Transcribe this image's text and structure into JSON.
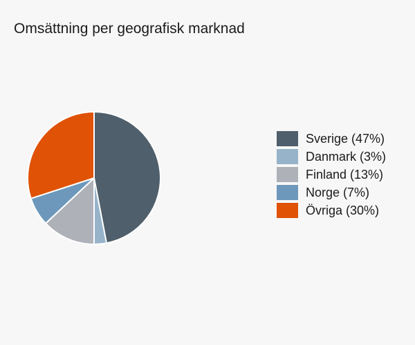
{
  "chart_data": {
    "type": "pie",
    "title": "Omsättning per geografisk marknad",
    "slices": [
      {
        "label": "Sverige (47%)",
        "value": 47,
        "color": "#4f5f6b"
      },
      {
        "label": "Danmark (3%)",
        "value": 3,
        "color": "#97b3c9"
      },
      {
        "label": "Finland (13%)",
        "value": 13,
        "color": "#afb1b9"
      },
      {
        "label": "Norge (7%)",
        "value": 7,
        "color": "#6d98bb"
      },
      {
        "label": "Övriga (30%)",
        "value": 30,
        "color": "#e05206"
      }
    ],
    "legend_position": "right"
  }
}
